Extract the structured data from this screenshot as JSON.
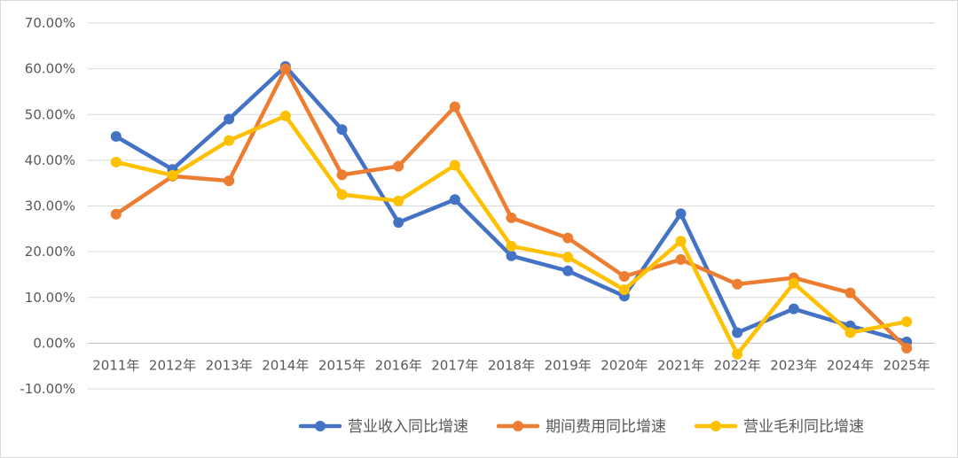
{
  "chart_data": {
    "type": "line",
    "categories": [
      "2011年",
      "2012年",
      "2013年",
      "2014年",
      "2015年",
      "2016年",
      "2017年",
      "2018年",
      "2019年",
      "2020年",
      "2021年",
      "2022年",
      "2023年",
      "2024年",
      "2025年"
    ],
    "ylim": [
      -10,
      70
    ],
    "yticks": [
      -10,
      0,
      10,
      20,
      30,
      40,
      50,
      60,
      70
    ],
    "ytick_labels": [
      "-10.00%",
      "0.00%",
      "10.00%",
      "20.00%",
      "30.00%",
      "40.00%",
      "50.00%",
      "60.00%",
      "70.00%"
    ],
    "grid": "horizontal",
    "legend": "bottom-right",
    "series": [
      {
        "name": "营业收入同比增速",
        "color": "#4472C4",
        "values": [
          45.2,
          38.0,
          49.0,
          60.5,
          46.7,
          26.4,
          31.4,
          19.1,
          15.8,
          10.3,
          28.3,
          2.3,
          7.5,
          3.8,
          0.3
        ]
      },
      {
        "name": "期间费用同比增速",
        "color": "#ED7D31",
        "values": [
          28.2,
          36.5,
          35.5,
          60.0,
          36.8,
          38.7,
          51.7,
          27.4,
          23.0,
          14.6,
          18.3,
          12.9,
          14.3,
          11.0,
          -1.1
        ]
      },
      {
        "name": "营业毛利同比增速",
        "color": "#FFC000",
        "values": [
          39.6,
          36.7,
          44.3,
          49.7,
          32.5,
          31.1,
          38.9,
          21.2,
          18.8,
          11.7,
          22.3,
          -2.4,
          13.1,
          2.3,
          4.7
        ]
      }
    ]
  }
}
